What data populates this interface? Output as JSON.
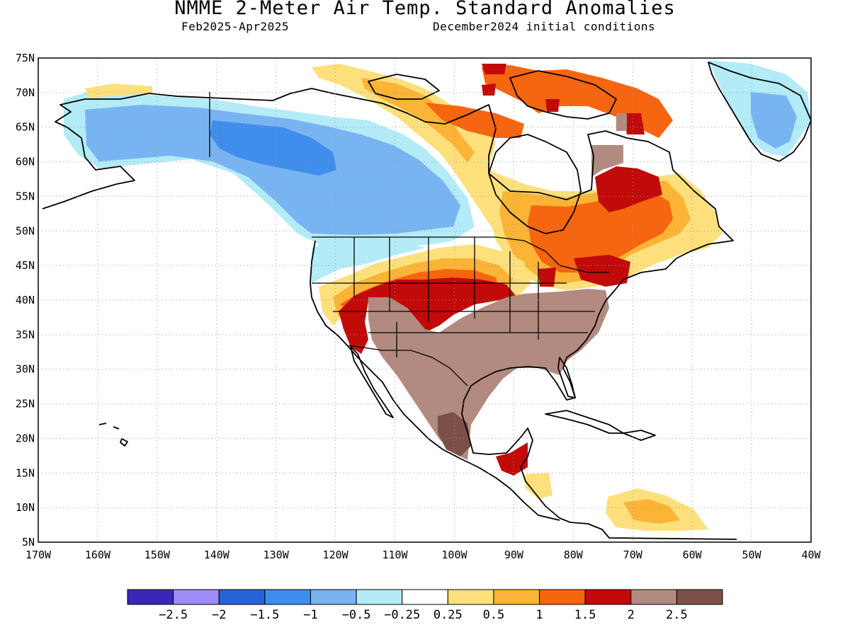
{
  "title": "NMME 2-Meter Air Temp. Standard Anomalies",
  "subtitle_left": "Feb2025-Apr2025",
  "subtitle_right": "December2024 initial conditions",
  "lat_labels": [
    "75N",
    "70N",
    "65N",
    "60N",
    "55N",
    "50N",
    "45N",
    "40N",
    "35N",
    "30N",
    "25N",
    "20N",
    "15N",
    "10N",
    "5N"
  ],
  "lon_labels": [
    "170W",
    "160W",
    "150W",
    "140W",
    "130W",
    "120W",
    "110W",
    "100W",
    "90W",
    "80W",
    "70W",
    "60W",
    "50W",
    "40W"
  ],
  "colorbar": {
    "colors": [
      "#3b27b5",
      "#9f8bf5",
      "#2563d9",
      "#3f8ded",
      "#79b4f2",
      "#b3ebf7",
      "#ffffff",
      "#fde07c",
      "#fbb435",
      "#f6650f",
      "#c20a0a",
      "#b38a7f",
      "#7a5048"
    ],
    "labels": [
      "-2.5",
      "-2",
      "-1.5",
      "-1",
      "-0.5",
      "-0.25",
      "0.25",
      "0.5",
      "1",
      "1.5",
      "2",
      "2.5"
    ]
  },
  "palette": {
    "lt_blue": "#b3ebf7",
    "blue": "#79b4f2",
    "mid_blue": "#3f8ded",
    "yellow": "#fde07c",
    "orange": "#fbb435",
    "dk_orange": "#f6650f",
    "red": "#c20a0a",
    "brown": "#b38a7f",
    "dk_brown": "#7a5048"
  }
}
